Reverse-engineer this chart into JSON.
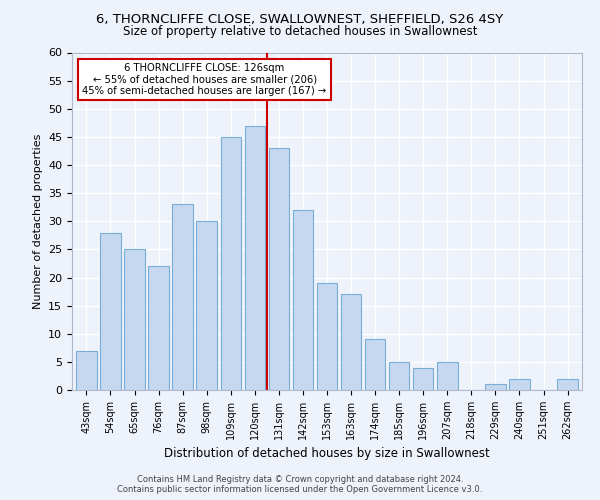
{
  "title_line1": "6, THORNCLIFFE CLOSE, SWALLOWNEST, SHEFFIELD, S26 4SY",
  "title_line2": "Size of property relative to detached houses in Swallownest",
  "xlabel": "Distribution of detached houses by size in Swallownest",
  "ylabel": "Number of detached properties",
  "categories": [
    "43sqm",
    "54sqm",
    "65sqm",
    "76sqm",
    "87sqm",
    "98sqm",
    "109sqm",
    "120sqm",
    "131sqm",
    "142sqm",
    "153sqm",
    "163sqm",
    "174sqm",
    "185sqm",
    "196sqm",
    "207sqm",
    "218sqm",
    "229sqm",
    "240sqm",
    "251sqm",
    "262sqm"
  ],
  "values": [
    7,
    28,
    25,
    22,
    33,
    30,
    45,
    47,
    43,
    32,
    19,
    17,
    9,
    5,
    4,
    5,
    0,
    1,
    2,
    0,
    2
  ],
  "bar_color": "#c5d8f0",
  "bar_edge_color": "#7aadd4",
  "vline_x": 7.5,
  "vline_color": "#cc0000",
  "annotation_line1": "6 THORNCLIFFE CLOSE: 126sqm",
  "annotation_line2": "← 55% of detached houses are smaller (206)",
  "annotation_line3": "45% of semi-detached houses are larger (167) →",
  "annotation_box_color": "#ffffff",
  "annotation_box_edge": "#cc0000",
  "ylim": [
    0,
    60
  ],
  "yticks": [
    0,
    5,
    10,
    15,
    20,
    25,
    30,
    35,
    40,
    45,
    50,
    55,
    60
  ],
  "footer_line1": "Contains HM Land Registry data © Crown copyright and database right 2024.",
  "footer_line2": "Contains public sector information licensed under the Open Government Licence v3.0.",
  "bg_color": "#eef2fa",
  "grid_color": "#ffffff",
  "title_fontsize": 9.5,
  "subtitle_fontsize": 8.5,
  "bar_width": 0.85
}
